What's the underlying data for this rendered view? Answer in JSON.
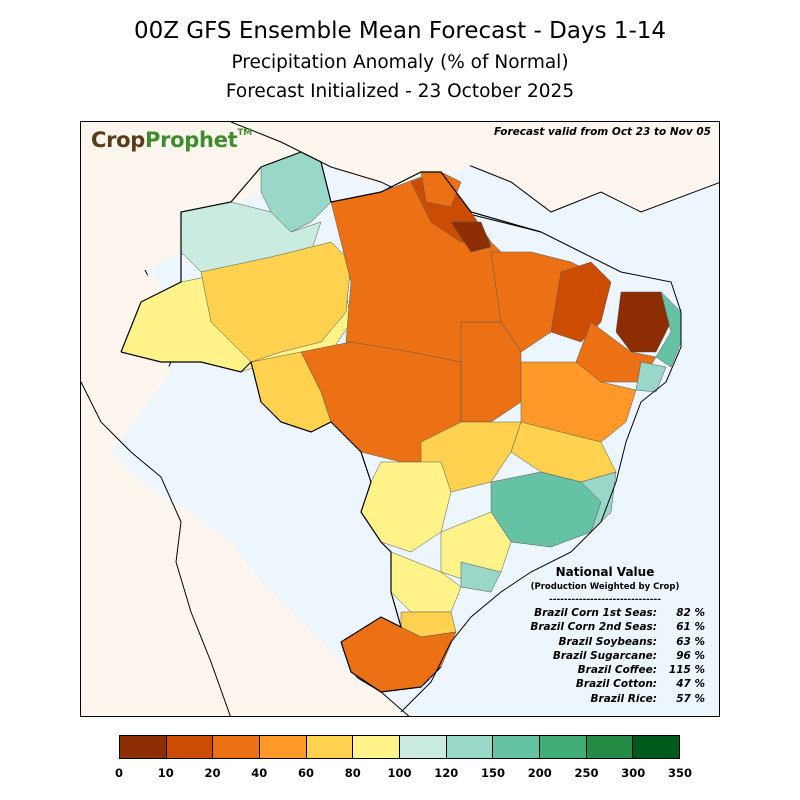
{
  "title": {
    "line1": "00Z GFS Ensemble Mean Forecast  -  Days 1-14",
    "line2": "Precipitation Anomaly (% of Normal)",
    "line3": "Forecast Initialized - 23 October 2025"
  },
  "logo": {
    "part1": "Crop",
    "part2": "Prophet",
    "tm": "TM"
  },
  "valid_text": "Forecast valid from Oct 23 to Nov 05",
  "national": {
    "heading": "National Value",
    "subheading": "(Production Weighted by Crop)",
    "divider": "------------------------------",
    "rows": [
      {
        "label": "Brazil Corn 1st Seas:",
        "value": "82 %"
      },
      {
        "label": "Brazil Corn 2nd Seas:",
        "value": "61 %"
      },
      {
        "label": "Brazil Soybeans:",
        "value": "63 %"
      },
      {
        "label": "Brazil Sugarcane:",
        "value": "96 %"
      },
      {
        "label": "Brazil Coffee:",
        "value": "115 %"
      },
      {
        "label": "Brazil Cotton:",
        "value": "47 %"
      },
      {
        "label": "Brazil Rice:",
        "value": "57 %"
      }
    ]
  },
  "colorbar": {
    "ticks": [
      "0",
      "10",
      "20",
      "40",
      "60",
      "80",
      "100",
      "120",
      "150",
      "200",
      "250",
      "300",
      "350"
    ],
    "colors": [
      "#8c2d04",
      "#cc4c02",
      "#ec7014",
      "#fe9929",
      "#fed24e",
      "#fff38a",
      "#c9ebe0",
      "#99d8c9",
      "#66c2a4",
      "#41ae76",
      "#238b45",
      "#005a1e"
    ]
  },
  "map_colors": {
    "ocean": "#eef6fd",
    "land_other": "#fdf6ee",
    "border": "#000000"
  }
}
